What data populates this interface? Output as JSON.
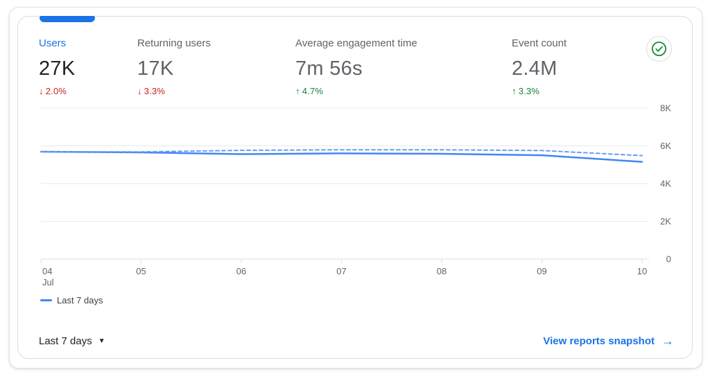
{
  "metrics": [
    {
      "label": "Users",
      "value": "27K",
      "arrow": "↓",
      "delta": "2.0%",
      "direction": "down",
      "selected": true
    },
    {
      "label": "Returning users",
      "value": "17K",
      "arrow": "↓",
      "delta": "3.3%",
      "direction": "down",
      "selected": false
    },
    {
      "label": "Average engagement time",
      "value": "7m 56s",
      "arrow": "↑",
      "delta": "4.7%",
      "direction": "up",
      "selected": false
    },
    {
      "label": "Event count",
      "value": "2.4M",
      "arrow": "↑",
      "delta": "3.3%",
      "direction": "up",
      "selected": false
    }
  ],
  "icons": {
    "status": "check-circle-icon",
    "dropdown_caret": "▼",
    "link_arrow": "→"
  },
  "legend": [
    {
      "label": "Last 7 days",
      "color": "#4285f4"
    }
  ],
  "footer": {
    "range_label": "Last 7 days",
    "link_label": "View reports snapshot"
  },
  "colors": {
    "accent_blue": "#1a73e8",
    "line_blue": "#4285f4",
    "dashed_line_blue": "#669df6",
    "negative_red": "#c5221f",
    "positive_green": "#188038",
    "text_dark": "#202124",
    "text_gray": "#5f6368",
    "gridline": "#e8eaed",
    "axis_line": "#dadce0",
    "icon_green": "#1e8e3e"
  },
  "chart_data": {
    "type": "line",
    "x": [
      "04",
      "05",
      "06",
      "07",
      "08",
      "09",
      "10"
    ],
    "x_first_sublabel": "Jul",
    "series": [
      {
        "name": "Last 7 days",
        "style": "solid",
        "color": "#4285f4",
        "values": [
          5690,
          5650,
          5560,
          5600,
          5580,
          5500,
          5150
        ]
      },
      {
        "name": "",
        "style": "dashed",
        "color": "#669df6",
        "values": [
          5690,
          5680,
          5760,
          5790,
          5790,
          5750,
          5480
        ]
      }
    ],
    "ylim": [
      0,
      8000
    ],
    "yticks": [
      0,
      2000,
      4000,
      6000,
      8000
    ],
    "ytick_labels": [
      "0",
      "2K",
      "4K",
      "6K",
      "8K"
    ],
    "grid": true,
    "legend_position": "bottom-left"
  }
}
